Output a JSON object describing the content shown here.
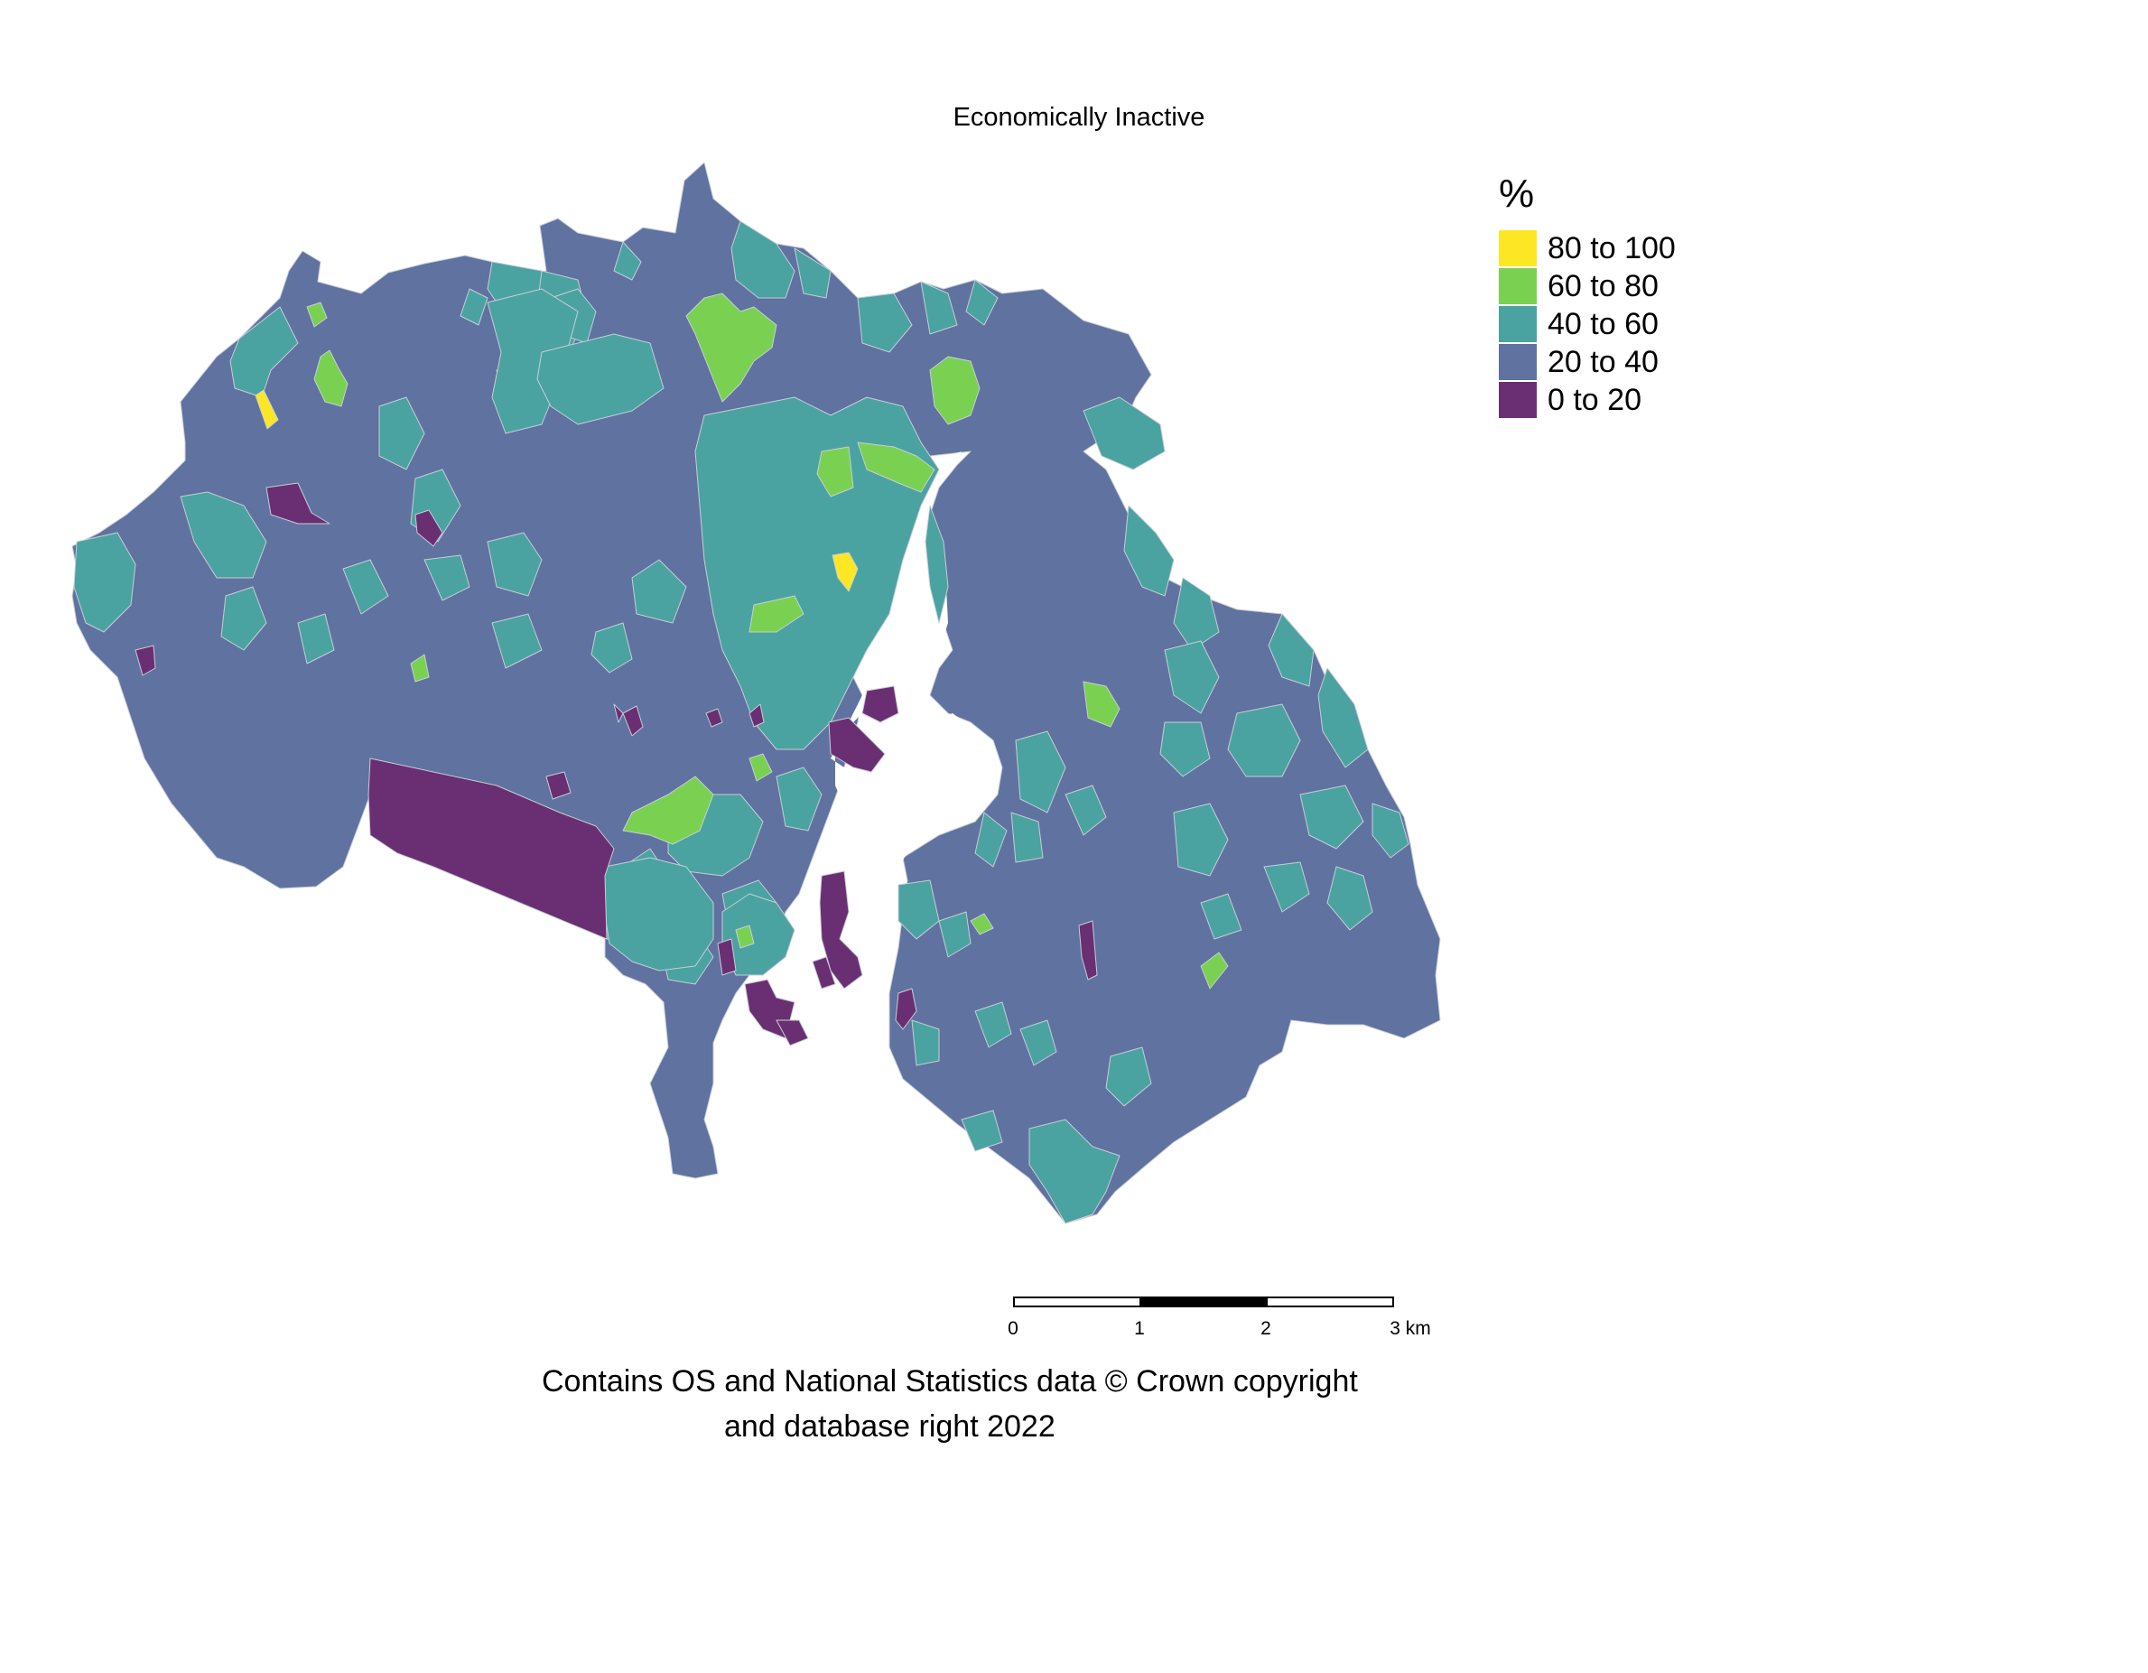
{
  "title": "Economically Inactive",
  "legend": {
    "title": "%",
    "entries": [
      {
        "label": "80 to 100",
        "color": "#fde725"
      },
      {
        "label": "60 to 80",
        "color": "#7ad151"
      },
      {
        "label": "40 to 60",
        "color": "#4aa3a0"
      },
      {
        "label": "20 to 40",
        "color": "#5f72a0"
      },
      {
        "label": "0 to 20",
        "color": "#6a2f72"
      }
    ]
  },
  "scale_bar": {
    "ticks": [
      "0",
      "1",
      "2",
      "3 km"
    ]
  },
  "credit": {
    "line1": "Contains OS and National Statistics data © Crown copyright",
    "line2": "and database right 2022"
  },
  "map_colors": {
    "c80": "#fde725",
    "c60": "#7ad151",
    "c40": "#4aa3a0",
    "c20": "#5f72a0",
    "c0": "#6a2f72",
    "boundary": "#c8cdd8",
    "river": "#ffffff"
  }
}
